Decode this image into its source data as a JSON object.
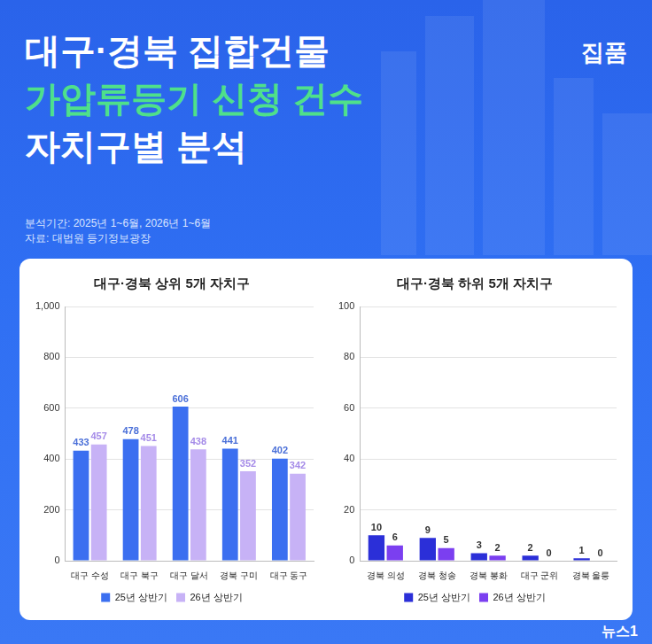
{
  "header": {
    "title_lines": [
      "대구·경북 집합건물",
      "가압류등기 신청 건수",
      "자치구별 분석"
    ],
    "logo": "집품",
    "notes": [
      "분석기간: 2025년 1~6월, 2026년 1~6월",
      "자료: 대법원 등기정보광장"
    ],
    "watermark": "뉴스1"
  },
  "chart_data": [
    {
      "type": "bar",
      "title": "대구·경북 상위 5개 자치구",
      "categories": [
        "대구 수성",
        "대구 북구",
        "대구 달서",
        "경북 구미",
        "대구 동구"
      ],
      "series": [
        {
          "name": "25년 상반기",
          "color": "#3b6ff0",
          "values": [
            433,
            478,
            606,
            441,
            402
          ]
        },
        {
          "name": "26년 상반기",
          "color": "#c7b2f6",
          "values": [
            457,
            451,
            438,
            352,
            342
          ]
        }
      ],
      "ylim": [
        0,
        1000
      ],
      "yticks": [
        0,
        200,
        400,
        600,
        800,
        {
          "value": 1000,
          "label": "1,000"
        }
      ],
      "grid": true,
      "legend": "bottom",
      "data_labels": true
    },
    {
      "type": "bar",
      "title": "대구·경북 하위 5개 자치구",
      "categories": [
        "경북 의성",
        "경북 청송",
        "경북 봉화",
        "대구 군위",
        "경북 울릉"
      ],
      "series": [
        {
          "name": "25년 상반기",
          "color": "#2b2fd8",
          "values": [
            10,
            9,
            3,
            2,
            1
          ]
        },
        {
          "name": "26년 상반기",
          "color": "#7b3ff0",
          "values": [
            6,
            5,
            2,
            0,
            0
          ]
        }
      ],
      "ylim": [
        0,
        100
      ],
      "yticks": [
        0,
        20,
        40,
        60,
        80,
        100
      ],
      "grid": true,
      "legend": "bottom",
      "data_labels": true
    }
  ]
}
